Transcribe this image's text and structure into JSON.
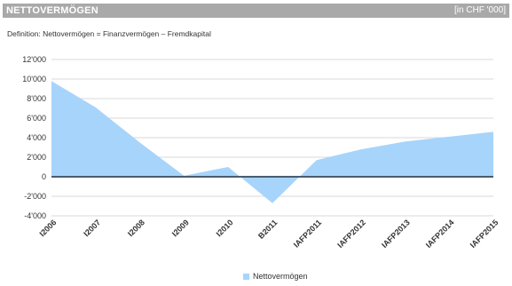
{
  "header": {
    "title": "NETTOVERMÖGEN",
    "unit": "[in CHF '000]"
  },
  "definition": "Definition: Nettovermögen = Finanzvermögen – Fremdkapital",
  "colors": {
    "area_fill": "#a7d4fb",
    "zero_line": "#4a5c70",
    "grid": "#d9d9d9",
    "header_bg": "#a9a9a9"
  },
  "chart_data": {
    "type": "area",
    "categories": [
      "I2006",
      "I2007",
      "I2008",
      "I2009",
      "I2010",
      "B2011",
      "IAFP2011",
      "IAFP2012",
      "IAFP2013",
      "IAFP2014",
      "IAFP2015"
    ],
    "series": [
      {
        "name": "Nettovermögen",
        "values": [
          9800,
          7100,
          3500,
          100,
          1000,
          -2700,
          1700,
          2800,
          3600,
          4100,
          4600
        ]
      }
    ],
    "ylim": [
      -4000,
      12000
    ],
    "yticks": [
      12000,
      10000,
      8000,
      6000,
      4000,
      2000,
      0,
      -2000,
      -4000
    ],
    "ytick_labels": [
      "12'000",
      "10'000",
      "8'000",
      "6'000",
      "4'000",
      "2'000",
      "0",
      "-2'000",
      "-4'000"
    ],
    "grid": true,
    "legend_position": "bottom-center"
  }
}
